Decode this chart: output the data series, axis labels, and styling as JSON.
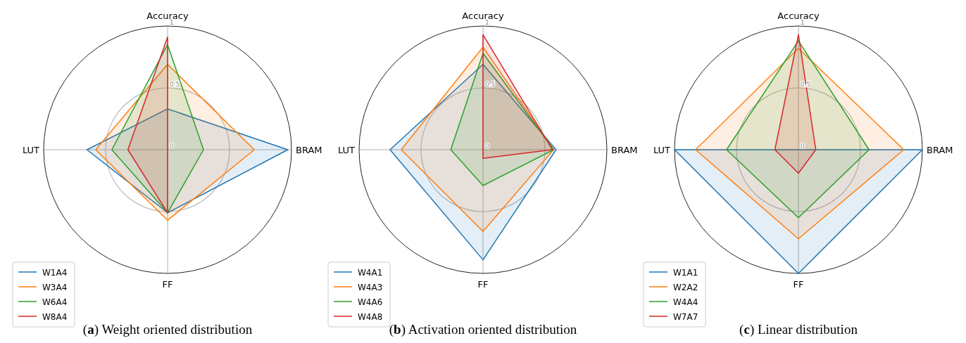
{
  "chart_data": [
    {
      "type": "radar",
      "categories": [
        "Accuracy",
        "BRAM",
        "FF",
        "LUT"
      ],
      "ylim": [
        0,
        1
      ],
      "yticks": [
        0,
        0.5,
        1
      ],
      "grid": true,
      "legend": "bottom left",
      "annotations": [
        "(a) Weight oriented distribution"
      ],
      "series": [
        {
          "name": "W1A4",
          "color": "#1f77b4",
          "values": [
            0.33,
            0.97,
            0.51,
            0.65
          ]
        },
        {
          "name": "W3A4",
          "color": "#ff7f0e",
          "values": [
            0.69,
            0.7,
            0.57,
            0.58
          ]
        },
        {
          "name": "W6A4",
          "color": "#2ca02c",
          "values": [
            0.85,
            0.29,
            0.51,
            0.45
          ]
        },
        {
          "name": "W8A4",
          "color": "#d62728",
          "values": [
            0.91,
            0,
            0.51,
            0.32
          ]
        }
      ]
    },
    {
      "type": "radar",
      "categories": [
        "Accuracy",
        "BRAM",
        "FF",
        "LUT"
      ],
      "ylim": [
        0,
        1
      ],
      "yticks": [
        0,
        0.5,
        1
      ],
      "grid": true,
      "legend": "bottom left",
      "annotations": [
        "(b) Activation oriented distribution"
      ],
      "series": [
        {
          "name": "W4A1",
          "color": "#1f77b4",
          "values": [
            0.69,
            0.59,
            0.89,
            0.75
          ]
        },
        {
          "name": "W4A3",
          "color": "#ff7f0e",
          "values": [
            0.83,
            0.57,
            0.66,
            0.66
          ]
        },
        {
          "name": "W4A6",
          "color": "#2ca02c",
          "values": [
            0.78,
            0.57,
            0.29,
            0.26
          ]
        },
        {
          "name": "W4A8",
          "color": "#d62728",
          "values": [
            0.93,
            0.56,
            0.07,
            0
          ]
        }
      ]
    },
    {
      "type": "radar",
      "categories": [
        "Accuracy",
        "BRAM",
        "FF",
        "LUT"
      ],
      "ylim": [
        0,
        1
      ],
      "yticks": [
        0,
        0.5,
        1
      ],
      "grid": true,
      "legend": "bottom left",
      "annotations": [
        "(c) Linear distribution"
      ],
      "series": [
        {
          "name": "W1A1",
          "color": "#1f77b4",
          "values": [
            0,
            1,
            1,
            1
          ]
        },
        {
          "name": "W2A2",
          "color": "#ff7f0e",
          "values": [
            0.82,
            0.85,
            0.72,
            0.83
          ]
        },
        {
          "name": "W4A4",
          "color": "#2ca02c",
          "values": [
            0.88,
            0.57,
            0.55,
            0.58
          ]
        },
        {
          "name": "W7A7",
          "color": "#d62728",
          "values": [
            0.93,
            0.14,
            0.19,
            0.19
          ]
        }
      ]
    }
  ]
}
